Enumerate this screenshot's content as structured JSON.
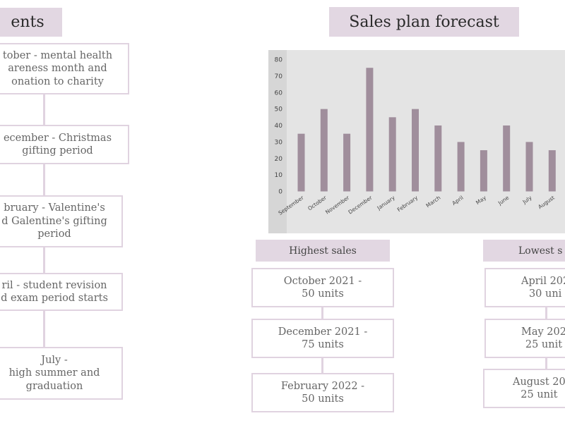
{
  "left_panel": {
    "title": "ents",
    "items": [
      "tober - mental health\nareness month and\nonation to charity",
      "ecember - Christmas\ngifting period",
      "bruary - Valentine's\nd Galentine's gifting\nperiod",
      "ril - student revision\nd exam period starts",
      "July -\nhigh summer and\ngraduation"
    ]
  },
  "forecast": {
    "title": "Sales plan forecast"
  },
  "highest": {
    "title": "Highest sales",
    "items": [
      "October 2021 -\n50 units",
      "December 2021 -\n75 units",
      "February 2022  -\n50 units"
    ]
  },
  "lowest": {
    "title": "Lowest s",
    "items": [
      "April 202\n30 uni",
      "May 202\n25 unit",
      "August 20\n25 unit"
    ]
  },
  "colors": {
    "accent": "#e2d7e2",
    "bar": "#a08e9c",
    "border": "#e0d3e0"
  },
  "chart_data": {
    "type": "bar",
    "categories": [
      "September",
      "October",
      "November",
      "December",
      "January",
      "February",
      "March",
      "April",
      "May",
      "June",
      "July",
      "August"
    ],
    "values": [
      35,
      50,
      35,
      75,
      45,
      50,
      40,
      30,
      25,
      40,
      30,
      25
    ],
    "ylim": [
      0,
      80
    ],
    "yticks": [
      0,
      10,
      20,
      30,
      40,
      50,
      60,
      70,
      80
    ],
    "grid": false,
    "title": "",
    "xlabel": "",
    "ylabel": ""
  }
}
